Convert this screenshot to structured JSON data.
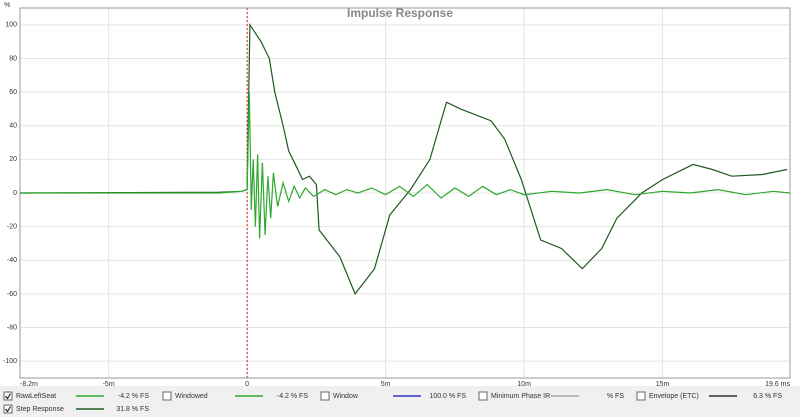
{
  "chart_data": {
    "type": "line",
    "title": "Impulse Response",
    "ylabel": "%",
    "xlim": [
      -8.2,
      19.6
    ],
    "ylim": [
      -110,
      110
    ],
    "xticks": [
      {
        "value": -8.2,
        "label": "-8.2m"
      },
      {
        "value": -5,
        "label": "-5m"
      },
      0,
      {
        "value": 5,
        "label": "5m"
      },
      {
        "value": 10,
        "label": "10m"
      },
      {
        "value": 15,
        "label": "15m"
      },
      {
        "value": 19.6,
        "label": "19.6 ms"
      }
    ],
    "yticks": [
      100,
      80,
      60,
      40,
      20,
      0,
      -20,
      -40,
      -60,
      -80,
      -100
    ],
    "grid": true,
    "series": [
      {
        "name": "RawLeftSeat",
        "color": "#2ea82e",
        "checked": true,
        "reading": "-4.2 % FS",
        "x": [
          -8.2,
          -4,
          -1,
          -0.2,
          0,
          0.08,
          0.15,
          0.22,
          0.3,
          0.38,
          0.45,
          0.55,
          0.65,
          0.75,
          0.85,
          0.95,
          1.1,
          1.3,
          1.5,
          1.7,
          1.9,
          2.1,
          2.4,
          2.8,
          3.2,
          3.6,
          4.0,
          4.5,
          5.0,
          5.5,
          6.0,
          6.5,
          7.0,
          7.5,
          8.0,
          8.5,
          9.0,
          9.5,
          10.0,
          11,
          12,
          13,
          14,
          15,
          16,
          17,
          18,
          19,
          19.6
        ],
        "values": [
          0,
          0,
          0,
          1,
          2,
          60,
          -10,
          20,
          -20,
          23,
          -27,
          18,
          -25,
          10,
          -15,
          12,
          -8,
          6,
          -5,
          4,
          -3,
          3,
          -2,
          2,
          -1,
          2,
          0,
          3,
          -1,
          4,
          -2,
          5,
          -3,
          3,
          -2,
          4,
          -1,
          2,
          -1,
          1,
          0,
          2,
          -1,
          1,
          0,
          2,
          -1,
          1,
          0
        ]
      },
      {
        "name": "Step Response",
        "color": "#1e5a1e",
        "checked": true,
        "reading": "31.8 % FS",
        "x": [
          -8.2,
          -1,
          -0.2,
          0,
          0.1,
          0.3,
          0.5,
          0.8,
          1.0,
          1.3,
          1.5,
          1.8,
          2.0,
          2.25,
          2.5,
          2.6,
          3.35,
          3.9,
          4.6,
          5.15,
          5.9,
          6.6,
          7.2,
          7.7,
          8.8,
          9.3,
          9.9,
          10.6,
          11.35,
          12.1,
          12.8,
          13.35,
          14.25,
          15,
          16.1,
          16.8,
          17.5,
          18.6,
          19.5
        ],
        "values": [
          0,
          0.5,
          1,
          2,
          100,
          95,
          90,
          80,
          60,
          40,
          25,
          15,
          8,
          10,
          5,
          -22,
          -38,
          -60,
          -45,
          -13,
          2,
          20,
          54,
          50,
          43,
          32,
          8,
          -28,
          -33,
          -45,
          -33,
          -15,
          0,
          8,
          17,
          14,
          10,
          11,
          14
        ]
      }
    ],
    "other_traces": [
      {
        "name": "Windowed",
        "color": "#2ea82e",
        "checked": false,
        "reading": "-4.2 % FS"
      },
      {
        "name": "Window",
        "color": "#3333cc",
        "checked": false,
        "reading": "100.0 % FS"
      },
      {
        "name": "Minimum Phase IR",
        "color": "#aaaaaa",
        "checked": false,
        "reading": "% FS"
      },
      {
        "name": "Envelope (ETC)",
        "color": "#333333",
        "checked": false,
        "reading": "6.3 % FS"
      }
    ]
  }
}
